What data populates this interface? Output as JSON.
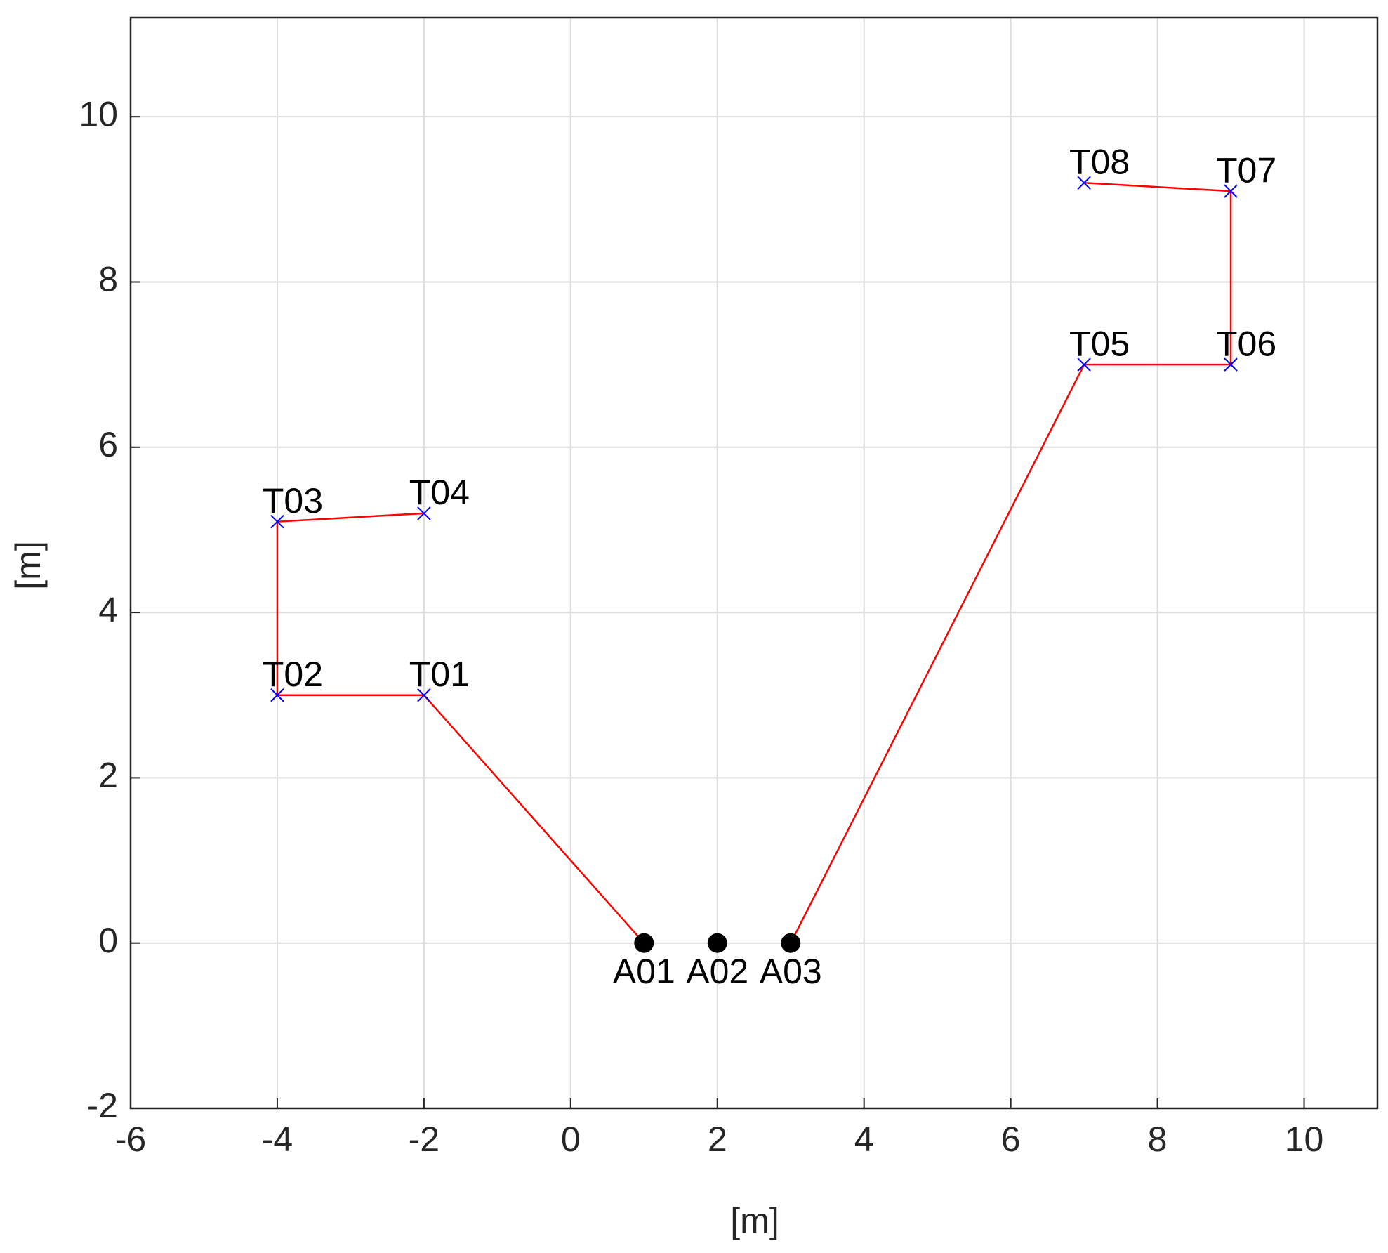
{
  "chart_data": {
    "type": "scatter",
    "x_label": "[m]",
    "y_label": "[m]",
    "xlim": [
      -6,
      11
    ],
    "ylim": [
      -2,
      11.2
    ],
    "xticks": [
      -6,
      -4,
      -2,
      0,
      2,
      4,
      6,
      8,
      10
    ],
    "yticks": [
      -2,
      0,
      2,
      4,
      6,
      8,
      10
    ],
    "grid": true,
    "anchors": {
      "color": "#000000",
      "labels": [
        "A01",
        "A02",
        "A03"
      ],
      "x": [
        1,
        2,
        3
      ],
      "y": [
        0,
        0,
        0
      ]
    },
    "tags": {
      "color": "#0000ff",
      "labels": [
        "T01",
        "T02",
        "T03",
        "T04",
        "T05",
        "T06",
        "T07",
        "T08"
      ],
      "x": [
        -2,
        -4,
        -4,
        -2,
        7,
        9,
        9,
        7
      ],
      "y": [
        3,
        3,
        5.1,
        5.2,
        7,
        7,
        9.1,
        9.2
      ]
    },
    "routes": [
      {
        "color": "#ff0000",
        "x": [
          1,
          -2,
          -4,
          -4,
          -2
        ],
        "y": [
          0,
          3,
          3,
          5.1,
          5.2
        ]
      },
      {
        "color": "#ff0000",
        "x": [
          3,
          7,
          9,
          9,
          7
        ],
        "y": [
          0,
          7,
          7,
          9.1,
          9.2
        ]
      }
    ]
  }
}
